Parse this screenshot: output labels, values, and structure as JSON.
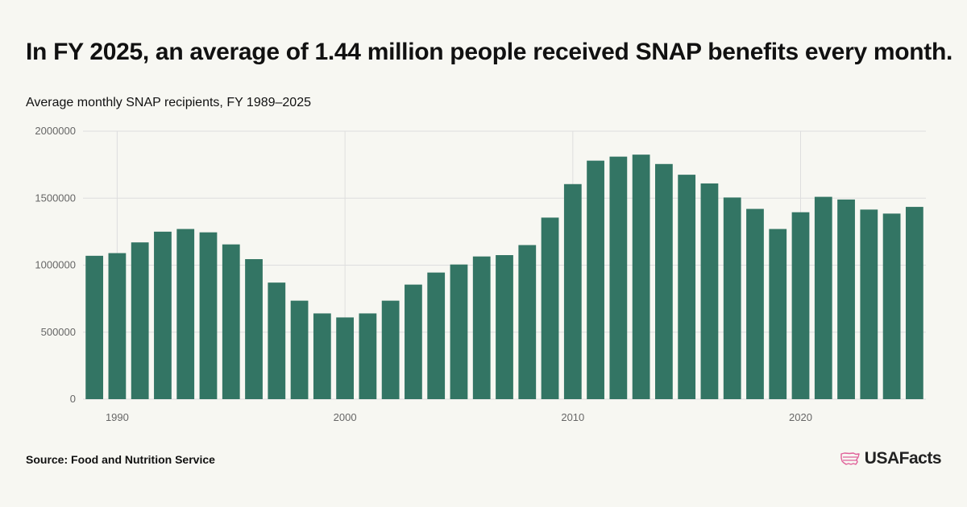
{
  "header": {
    "title": "In FY 2025, an average of 1.44 million people received SNAP benefits every month.",
    "subtitle": "Average monthly SNAP recipients, FY 1989–2025"
  },
  "footer": {
    "source": "Source: Food and Nutrition Service",
    "brand": "USAFacts",
    "brand_color": "#e0619a"
  },
  "colors": {
    "bar": "#337564",
    "grid": "#dedede",
    "axis_text": "#666666"
  },
  "chart_data": {
    "type": "bar",
    "title": "In FY 2025, an average of 1.44 million people received SNAP benefits every month.",
    "subtitle": "Average monthly SNAP recipients, FY 1989–2025",
    "xlabel": "",
    "ylabel": "",
    "ylim": [
      0,
      2000000
    ],
    "yticks": [
      0,
      500000,
      1000000,
      1500000,
      2000000
    ],
    "xticks": [
      1990,
      2000,
      2010,
      2020
    ],
    "grid": true,
    "x": [
      1989,
      1990,
      1991,
      1992,
      1993,
      1994,
      1995,
      1996,
      1997,
      1998,
      1999,
      2000,
      2001,
      2002,
      2003,
      2004,
      2005,
      2006,
      2007,
      2008,
      2009,
      2010,
      2011,
      2012,
      2013,
      2014,
      2015,
      2016,
      2017,
      2018,
      2019,
      2020,
      2021,
      2022,
      2023,
      2024,
      2025
    ],
    "values": [
      1070000,
      1090000,
      1170000,
      1250000,
      1270000,
      1245000,
      1155000,
      1045000,
      870000,
      735000,
      640000,
      610000,
      640000,
      735000,
      855000,
      945000,
      1005000,
      1065000,
      1075000,
      1150000,
      1355000,
      1605000,
      1780000,
      1810000,
      1825000,
      1755000,
      1675000,
      1610000,
      1505000,
      1420000,
      1270000,
      1395000,
      1510000,
      1490000,
      1415000,
      1385000,
      1435000
    ]
  }
}
